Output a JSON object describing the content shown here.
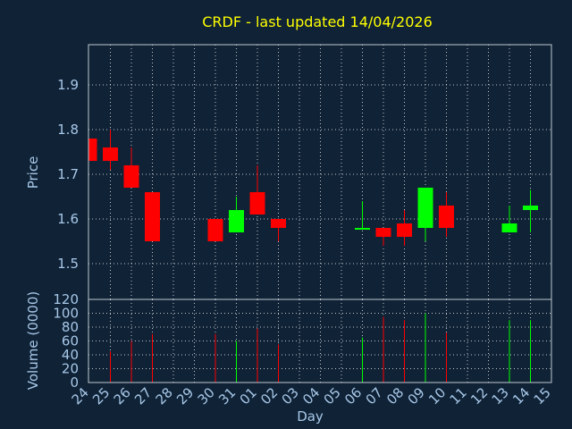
{
  "chart_data": {
    "type": "candlestick",
    "title": "CRDF - last updated 14/04/2026",
    "xlabel": "Day",
    "x_tick_labels": [
      "24",
      "25",
      "26",
      "27",
      "28",
      "29",
      "30",
      "31",
      "01",
      "02",
      "03",
      "04",
      "05",
      "06",
      "07",
      "08",
      "09",
      "10",
      "11",
      "12",
      "13",
      "14",
      "15"
    ],
    "price_panel": {
      "ylabel": "Price",
      "ylim": [
        1.42,
        1.99
      ],
      "yticks": [
        "1.5",
        "1.6",
        "1.7",
        "1.8",
        "1.9"
      ],
      "grid": true
    },
    "volume_panel": {
      "ylabel": "Volume (0000)",
      "ylim": [
        0,
        120
      ],
      "yticks": [
        "0",
        "20",
        "40",
        "60",
        "80",
        "100",
        "120"
      ],
      "grid": true
    },
    "candles": [
      {
        "day": "24",
        "open": 1.78,
        "high": 1.78,
        "low": 1.73,
        "close": 1.73,
        "volume": 0
      },
      {
        "day": "25",
        "open": 1.76,
        "high": 1.8,
        "low": 1.71,
        "close": 1.73,
        "volume": 45
      },
      {
        "day": "26",
        "open": 1.72,
        "high": 1.76,
        "low": 1.67,
        "close": 1.67,
        "volume": 60
      },
      {
        "day": "27",
        "open": 1.66,
        "high": 1.66,
        "low": 1.55,
        "close": 1.55,
        "volume": 70
      },
      {
        "day": "30",
        "open": 1.6,
        "high": 1.6,
        "low": 1.55,
        "close": 1.55,
        "volume": 70
      },
      {
        "day": "31",
        "open": 1.57,
        "high": 1.65,
        "low": 1.57,
        "close": 1.62,
        "volume": 60
      },
      {
        "day": "01",
        "open": 1.66,
        "high": 1.72,
        "low": 1.61,
        "close": 1.61,
        "volume": 78
      },
      {
        "day": "02",
        "open": 1.6,
        "high": 1.6,
        "low": 1.55,
        "close": 1.58,
        "volume": 55
      },
      {
        "day": "06",
        "open": 1.578,
        "high": 1.64,
        "low": 1.578,
        "close": 1.58,
        "volume": 65
      },
      {
        "day": "07",
        "open": 1.58,
        "high": 1.58,
        "low": 1.54,
        "close": 1.56,
        "volume": 95
      },
      {
        "day": "08",
        "open": 1.59,
        "high": 1.62,
        "low": 1.54,
        "close": 1.56,
        "volume": 90
      },
      {
        "day": "09",
        "open": 1.58,
        "high": 1.67,
        "low": 1.55,
        "close": 1.67,
        "volume": 100
      },
      {
        "day": "10",
        "open": 1.63,
        "high": 1.66,
        "low": 1.56,
        "close": 1.58,
        "volume": 72
      },
      {
        "day": "13",
        "open": 1.57,
        "high": 1.63,
        "low": 1.57,
        "close": 1.59,
        "volume": 90
      },
      {
        "day": "14",
        "open": 1.62,
        "high": 1.665,
        "low": 1.57,
        "close": 1.63,
        "volume": 90
      }
    ]
  },
  "colors": {
    "background": "#0f2236",
    "plot_background": "#0f2236",
    "up": "#00ff00",
    "down": "#ff0000",
    "title": "#ffff00",
    "axis_text": "#a8c8e8"
  }
}
